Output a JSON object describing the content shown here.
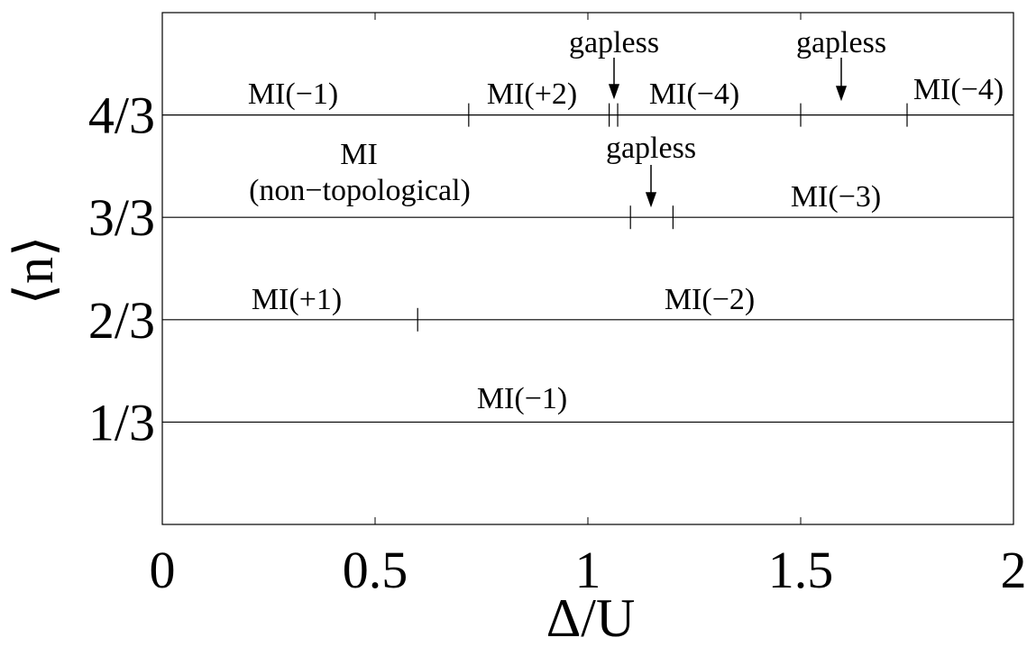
{
  "chart_data": {
    "type": "phase",
    "xlabel": "Δ/U",
    "ylabel": "⟨n⟩",
    "xlim": [
      0,
      2
    ],
    "ylim": [
      0,
      1.6667
    ],
    "xticks": [
      0,
      0.5,
      1,
      1.5,
      2
    ],
    "yticks": [
      {
        "value": 0.3333,
        "label": "1/3"
      },
      {
        "value": 0.6667,
        "label": "2/3"
      },
      {
        "value": 1,
        "label": "3/3"
      },
      {
        "value": 1.3333,
        "label": "4/3"
      }
    ],
    "boundaries": [
      {
        "y": 1.3333,
        "x": [
          0.72,
          1.05,
          1.07,
          1.5,
          1.75
        ]
      },
      {
        "y": 1,
        "x": [
          1.1,
          1.2
        ]
      },
      {
        "y": 0.6667,
        "x": [
          0.6
        ]
      }
    ],
    "annotations": [
      "MI(−1)",
      "MI(+2)",
      "gapless",
      "MI(−4)",
      "gapless",
      "MI(−4)",
      "MI",
      "(non−topological)",
      "gapless",
      "MI(−3)",
      "MI(+1)",
      "MI(−2)",
      "MI(−1)"
    ],
    "color": "#000000"
  }
}
